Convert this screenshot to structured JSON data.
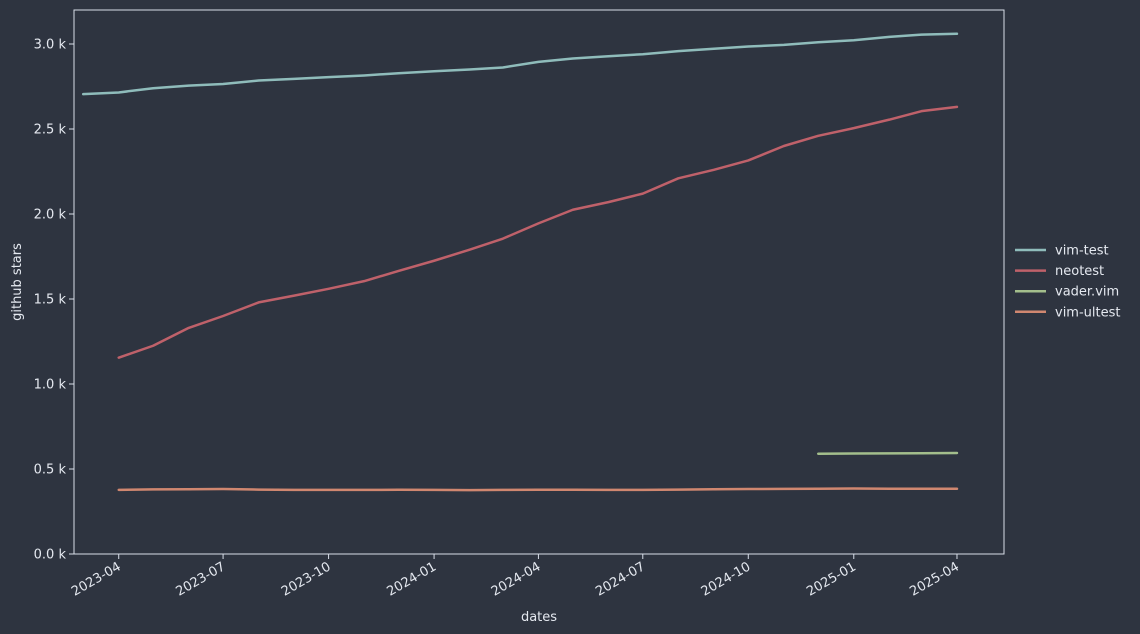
{
  "chart_data": {
    "type": "line",
    "title": "",
    "xlabel": "dates",
    "ylabel": "github stars",
    "xlim": [
      "2023-02-21",
      "2025-05-12"
    ],
    "ylim": [
      0,
      3200
    ],
    "x_ticks": [
      "2023-04",
      "2023-07",
      "2023-10",
      "2024-01",
      "2024-04",
      "2024-07",
      "2024-10",
      "2025-01",
      "2025-04"
    ],
    "y_ticks": [
      {
        "value": 0,
        "label": "0.0 k"
      },
      {
        "value": 500,
        "label": "0.5 k"
      },
      {
        "value": 1000,
        "label": "1.0 k"
      },
      {
        "value": 1500,
        "label": "1.5 k"
      },
      {
        "value": 2000,
        "label": "2.0 k"
      },
      {
        "value": 2500,
        "label": "2.5 k"
      },
      {
        "value": 3000,
        "label": "3.0 k"
      }
    ],
    "grid": false,
    "legend_position": "right",
    "background": "#2e3440",
    "foreground": "#e5e9f0",
    "series": [
      {
        "name": "vim-test",
        "color": "#8fbcbb",
        "points": [
          [
            "2023-03-01",
            2705
          ],
          [
            "2023-04-01",
            2715
          ],
          [
            "2023-05-01",
            2740
          ],
          [
            "2023-06-01",
            2755
          ],
          [
            "2023-07-01",
            2765
          ],
          [
            "2023-08-01",
            2785
          ],
          [
            "2023-09-01",
            2795
          ],
          [
            "2023-10-01",
            2805
          ],
          [
            "2023-11-01",
            2815
          ],
          [
            "2023-12-01",
            2828
          ],
          [
            "2024-01-01",
            2840
          ],
          [
            "2024-02-01",
            2850
          ],
          [
            "2024-03-01",
            2862
          ],
          [
            "2024-04-01",
            2895
          ],
          [
            "2024-05-01",
            2915
          ],
          [
            "2024-06-01",
            2928
          ],
          [
            "2024-07-01",
            2940
          ],
          [
            "2024-08-01",
            2958
          ],
          [
            "2024-09-01",
            2972
          ],
          [
            "2024-10-01",
            2985
          ],
          [
            "2024-11-01",
            2995
          ],
          [
            "2024-12-01",
            3010
          ],
          [
            "2025-01-01",
            3022
          ],
          [
            "2025-02-01",
            3042
          ],
          [
            "2025-03-01",
            3055
          ],
          [
            "2025-04-01",
            3060
          ]
        ]
      },
      {
        "name": "neotest",
        "color": "#bf616a",
        "points": [
          [
            "2023-04-01",
            1155
          ],
          [
            "2023-05-01",
            1225
          ],
          [
            "2023-06-01",
            1330
          ],
          [
            "2023-07-01",
            1400
          ],
          [
            "2023-08-01",
            1480
          ],
          [
            "2023-09-01",
            1520
          ],
          [
            "2023-10-01",
            1560
          ],
          [
            "2023-11-01",
            1605
          ],
          [
            "2023-12-01",
            1665
          ],
          [
            "2024-01-01",
            1725
          ],
          [
            "2024-02-01",
            1790
          ],
          [
            "2024-03-01",
            1855
          ],
          [
            "2024-04-01",
            1945
          ],
          [
            "2024-05-01",
            2025
          ],
          [
            "2024-06-01",
            2070
          ],
          [
            "2024-07-01",
            2120
          ],
          [
            "2024-08-01",
            2210
          ],
          [
            "2024-09-01",
            2260
          ],
          [
            "2024-10-01",
            2315
          ],
          [
            "2024-11-01",
            2400
          ],
          [
            "2024-12-01",
            2460
          ],
          [
            "2025-01-01",
            2505
          ],
          [
            "2025-02-01",
            2555
          ],
          [
            "2025-03-01",
            2605
          ],
          [
            "2025-04-01",
            2630
          ]
        ]
      },
      {
        "name": "vader.vim",
        "color": "#a3be8c",
        "points": [
          [
            "2024-12-01",
            590
          ],
          [
            "2025-01-01",
            591
          ],
          [
            "2025-02-01",
            592
          ],
          [
            "2025-03-01",
            593
          ],
          [
            "2025-04-01",
            594
          ]
        ]
      },
      {
        "name": "vim-ultest",
        "color": "#d08770",
        "points": [
          [
            "2023-04-01",
            377
          ],
          [
            "2023-05-01",
            380
          ],
          [
            "2023-06-01",
            381
          ],
          [
            "2023-07-01",
            382
          ],
          [
            "2023-08-01",
            379
          ],
          [
            "2023-09-01",
            377
          ],
          [
            "2023-10-01",
            377
          ],
          [
            "2023-11-01",
            377
          ],
          [
            "2023-12-01",
            378
          ],
          [
            "2024-01-01",
            377
          ],
          [
            "2024-02-01",
            376
          ],
          [
            "2024-03-01",
            377
          ],
          [
            "2024-04-01",
            378
          ],
          [
            "2024-05-01",
            378
          ],
          [
            "2024-06-01",
            377
          ],
          [
            "2024-07-01",
            377
          ],
          [
            "2024-08-01",
            379
          ],
          [
            "2024-09-01",
            381
          ],
          [
            "2024-10-01",
            382
          ],
          [
            "2024-11-01",
            383
          ],
          [
            "2024-12-01",
            384
          ],
          [
            "2025-01-01",
            385
          ],
          [
            "2025-02-01",
            384
          ],
          [
            "2025-03-01",
            384
          ],
          [
            "2025-04-01",
            384
          ]
        ]
      }
    ]
  }
}
